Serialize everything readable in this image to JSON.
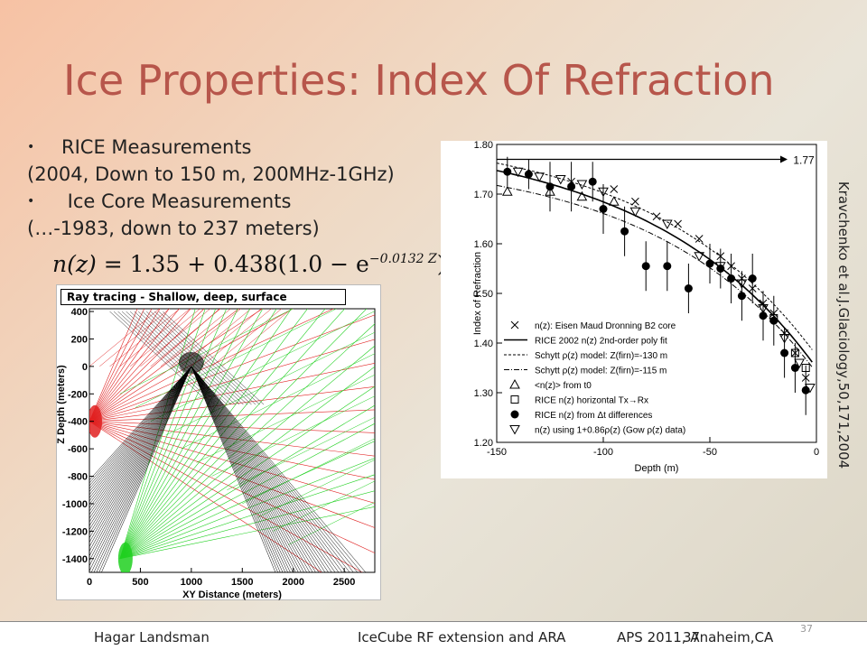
{
  "title": "Ice Properties: Index Of Refraction",
  "bullets": [
    {
      "marker": "•",
      "line1": "RICE Measurements",
      "line2": "(2004, Down to 150 m, 200MHz-1GHz)"
    },
    {
      "marker": "•",
      "line1": " Ice Core Measurements",
      "line2": "(…-1983, down to 237 meters)"
    }
  ],
  "formula": {
    "lhs": "n(z)",
    "rhs": " = 1.35 + 0.438(1.0 − e",
    "exp": "−0.0132 Z",
    "close": ")"
  },
  "citation": "Kravchenko et al.J.Glaciology,50,171,2004",
  "footer": {
    "author": "Hagar Landsman",
    "talk": "IceCube RF extension and ARA",
    "conf": "APS  2011, Anaheim,CA",
    "slide_num": "37",
    "page_num": "37"
  },
  "chart_data": [
    {
      "type": "ray-tracing",
      "title": "Ray tracing - Shallow, deep, surface",
      "xlabel": "XY Distance (meters)",
      "ylabel": "Z Depth (meters)",
      "xlim": [
        0,
        2800
      ],
      "ylim": [
        -1500,
        420
      ],
      "xticks": [
        "0",
        "500",
        "1000",
        "1500",
        "2000",
        "2500"
      ],
      "yticks": [
        "400",
        "200",
        "0",
        "-200",
        "-400",
        "-600",
        "-800",
        "-1000",
        "-1200",
        "-1400"
      ],
      "sources": [
        {
          "name": "shallow",
          "x": 0,
          "z": -400,
          "color": "#e02020"
        },
        {
          "name": "deep",
          "x": 300,
          "z": -1400,
          "color": "#20d020"
        },
        {
          "name": "surface",
          "x": 1000,
          "z": 0,
          "color": "#000000"
        }
      ]
    },
    {
      "type": "scatter",
      "xlabel": "Depth (m)",
      "ylabel": "Index of Refraction",
      "xlim": [
        -150,
        0
      ],
      "ylim": [
        1.2,
        1.8
      ],
      "xticks": [
        "-150",
        "-100",
        "-50",
        "0"
      ],
      "yticks": [
        "1.20",
        "1.30",
        "1.40",
        "1.50",
        "1.60",
        "1.70",
        "1.80"
      ],
      "annotation": {
        "text": "1.77",
        "y": 1.77
      },
      "legend": [
        {
          "symbol": "x",
          "label": "n(z): Eisen Maud Dronning B2 core"
        },
        {
          "symbol": "solid",
          "label": "RICE 2002 n(z) 2nd-order poly fit"
        },
        {
          "symbol": "dotted",
          "label": "Schytt ρ(z) model: Z(firn)=-130 m"
        },
        {
          "symbol": "dashdot",
          "label": "Schytt ρ(z) model: Z(firn)=-115 m"
        },
        {
          "symbol": "triangle",
          "label": "<n(z)> from t0"
        },
        {
          "symbol": "square",
          "label": "RICE n(z) horizontal Tx→Rx"
        },
        {
          "symbol": "dot",
          "label": "RICE n(z) from Δt differences"
        },
        {
          "symbol": "invtriangle",
          "label": "n(z) using 1+0.86ρ(z) (Gow ρ(z) data)"
        }
      ],
      "series": [
        {
          "name": "RICE n(z) from Δt differences",
          "marker": "dot",
          "x": [
            -145,
            -135,
            -125,
            -115,
            -105,
            -100,
            -90,
            -80,
            -70,
            -60,
            -50,
            -45,
            -40,
            -35,
            -30,
            -25,
            -20,
            -15,
            -10,
            -5
          ],
          "y": [
            1.745,
            1.74,
            1.715,
            1.715,
            1.725,
            1.67,
            1.625,
            1.555,
            1.555,
            1.51,
            1.56,
            1.55,
            1.53,
            1.495,
            1.53,
            1.455,
            1.445,
            1.38,
            1.35,
            1.305
          ],
          "err": [
            0.03,
            0.03,
            0.05,
            0.05,
            0.04,
            0.05,
            0.05,
            0.05,
            0.05,
            0.05,
            0.04,
            0.04,
            0.05,
            0.05,
            0.05,
            0.05,
            0.05,
            0.05,
            0.05,
            0.05
          ]
        },
        {
          "name": "n(z): Eisen Maud Dronning B2 core",
          "marker": "x",
          "x": [
            -115,
            -95,
            -85,
            -75,
            -65,
            -55,
            -45,
            -40,
            -35,
            -30,
            -25,
            -20,
            -15,
            -10,
            -5
          ],
          "y": [
            1.725,
            1.71,
            1.685,
            1.655,
            1.64,
            1.61,
            1.575,
            1.555,
            1.53,
            1.51,
            1.48,
            1.46,
            1.42,
            1.38,
            1.33
          ]
        },
        {
          "name": "<n(z)> from t0",
          "marker": "triangle",
          "x": [
            -145,
            -125,
            -110,
            -95
          ],
          "y": [
            1.705,
            1.705,
            1.695,
            1.685
          ]
        },
        {
          "name": "RICE n(z) horizontal Tx→Rx",
          "marker": "square",
          "x": [
            -20,
            -10,
            -5
          ],
          "y": [
            1.45,
            1.38,
            1.35
          ]
        },
        {
          "name": "n(z) using 1+0.86ρ(z) (Gow ρ(z) data)",
          "marker": "invtriangle",
          "x": [
            -140,
            -130,
            -120,
            -110,
            -100,
            -85,
            -70,
            -55,
            -45,
            -35,
            -25,
            -15,
            -8,
            -3
          ],
          "y": [
            1.745,
            1.735,
            1.73,
            1.72,
            1.705,
            1.665,
            1.64,
            1.575,
            1.555,
            1.52,
            1.47,
            1.41,
            1.36,
            1.31
          ]
        }
      ]
    }
  ]
}
